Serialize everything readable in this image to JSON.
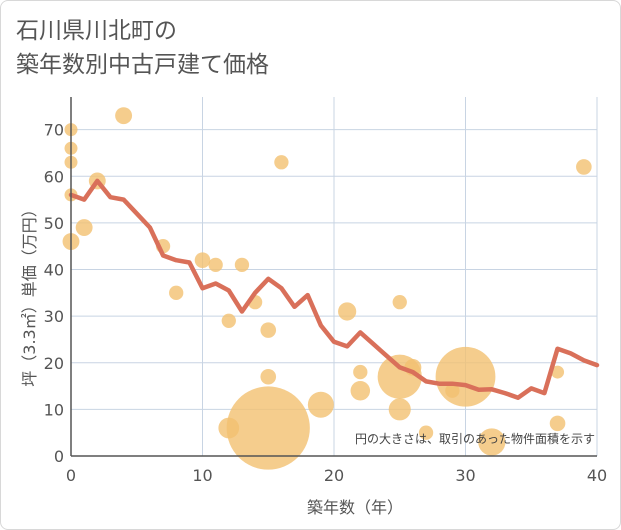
{
  "chart_data": {
    "type": "scatter",
    "title_lines": [
      "石川県川北町の",
      "築年数別中古戸建て価格"
    ],
    "xlabel": "築年数（年）",
    "ylabel": "坪（3.3㎡）単価（万円）",
    "xlim": [
      0,
      40
    ],
    "ylim": [
      0,
      77
    ],
    "xticks": [
      0,
      10,
      20,
      30,
      40
    ],
    "yticks": [
      0,
      10,
      20,
      30,
      40,
      50,
      60,
      70
    ],
    "grid": true,
    "note": "円の大きさは、取引のあった物件面積を示す",
    "colors": {
      "bubble": "#f3c170",
      "line": "#d9705a",
      "grid": "#c8d4e3",
      "axis": "#555555"
    },
    "points": [
      {
        "x": 0,
        "y": 70,
        "size": 1
      },
      {
        "x": 0,
        "y": 66,
        "size": 1
      },
      {
        "x": 0,
        "y": 63,
        "size": 1
      },
      {
        "x": 0,
        "y": 56,
        "size": 1
      },
      {
        "x": 0,
        "y": 46,
        "size": 1.3
      },
      {
        "x": 1,
        "y": 49,
        "size": 1.3
      },
      {
        "x": 2,
        "y": 59,
        "size": 1.3
      },
      {
        "x": 4,
        "y": 73,
        "size": 1.3
      },
      {
        "x": 7,
        "y": 45,
        "size": 1.1
      },
      {
        "x": 8,
        "y": 35,
        "size": 1.1
      },
      {
        "x": 10,
        "y": 42,
        "size": 1.2
      },
      {
        "x": 11,
        "y": 41,
        "size": 1.1
      },
      {
        "x": 12,
        "y": 29,
        "size": 1.1
      },
      {
        "x": 12,
        "y": 6,
        "size": 1.6
      },
      {
        "x": 13,
        "y": 41,
        "size": 1.1
      },
      {
        "x": 14,
        "y": 33,
        "size": 1.1
      },
      {
        "x": 15,
        "y": 27,
        "size": 1.2
      },
      {
        "x": 15,
        "y": 17,
        "size": 1.2
      },
      {
        "x": 15,
        "y": 6,
        "size": 6.4
      },
      {
        "x": 16,
        "y": 63,
        "size": 1.1
      },
      {
        "x": 19,
        "y": 11,
        "size": 2.0
      },
      {
        "x": 21,
        "y": 31,
        "size": 1.4
      },
      {
        "x": 22,
        "y": 18,
        "size": 1.1
      },
      {
        "x": 22,
        "y": 14,
        "size": 1.5
      },
      {
        "x": 25,
        "y": 33,
        "size": 1.1
      },
      {
        "x": 25,
        "y": 17,
        "size": 3.4
      },
      {
        "x": 25,
        "y": 10,
        "size": 1.7
      },
      {
        "x": 26,
        "y": 19,
        "size": 1.3
      },
      {
        "x": 27,
        "y": 5,
        "size": 1.1
      },
      {
        "x": 29,
        "y": 14,
        "size": 1.1
      },
      {
        "x": 30,
        "y": 17,
        "size": 4.6
      },
      {
        "x": 32,
        "y": 3,
        "size": 2.1
      },
      {
        "x": 37,
        "y": 18,
        "size": 1.0
      },
      {
        "x": 37,
        "y": 7,
        "size": 1.2
      },
      {
        "x": 39,
        "y": 62,
        "size": 1.2
      }
    ],
    "line": {
      "x": [
        0,
        1,
        2,
        3,
        4,
        5,
        6,
        7,
        8,
        9,
        10,
        11,
        12,
        13,
        14,
        15,
        16,
        17,
        18,
        19,
        20,
        21,
        22,
        23,
        24,
        25,
        26,
        27,
        28,
        29,
        30,
        31,
        32,
        33,
        34,
        35,
        36,
        37,
        38,
        39,
        40
      ],
      "y": [
        56,
        55,
        59,
        55.5,
        55,
        52,
        49,
        43,
        42,
        41.5,
        36,
        37,
        35.5,
        31,
        35,
        38,
        36,
        32,
        34.5,
        28,
        24.5,
        23.5,
        26.5,
        24,
        21.5,
        19,
        18,
        16,
        15.5,
        15.5,
        15.2,
        14.2,
        14.3,
        13.5,
        12.5,
        14.5,
        13.5,
        23,
        22,
        20.5,
        19.5
      ]
    }
  }
}
